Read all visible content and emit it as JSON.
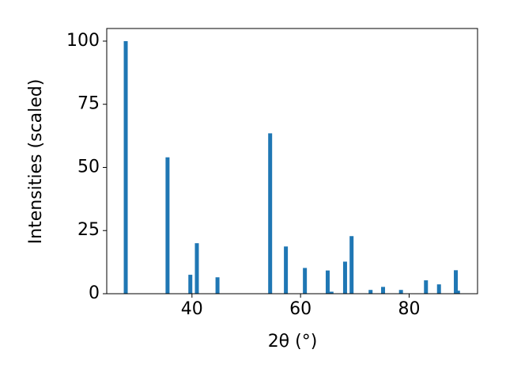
{
  "chart_data": {
    "type": "bar",
    "x_label": "2θ (°)",
    "y_label": "Intensities (scaled)",
    "x": [
      27.8,
      35.5,
      39.7,
      40.9,
      44.7,
      54.4,
      57.3,
      60.8,
      65.0,
      65.7,
      68.2,
      69.4,
      72.9,
      75.2,
      78.5,
      83.1,
      85.5,
      88.6,
      89.0
    ],
    "values": [
      100,
      54,
      7.5,
      20,
      6.5,
      63.5,
      18.7,
      10.2,
      9.2,
      0.8,
      12.7,
      22.8,
      1.5,
      2.7,
      1.5,
      5.3,
      3.7,
      9.3,
      1.2
    ],
    "color": "#1f77b4",
    "xlim": [
      24.3,
      92.6
    ],
    "ylim": [
      0,
      105
    ],
    "xticks": [
      40,
      60,
      80
    ],
    "yticks": [
      0,
      25,
      50,
      75,
      100
    ],
    "grid": false
  }
}
